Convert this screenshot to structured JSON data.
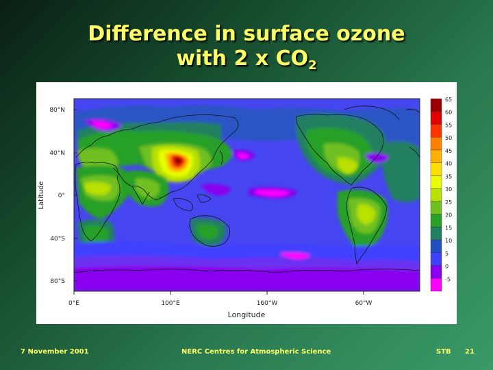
{
  "slide": {
    "title_line1": "Difference in surface ozone",
    "title_line2_main": "with 2 x CO",
    "title_line2_sub": "2",
    "footer_date": "7 November 2001",
    "footer_center": "NERC Centres for Atmospheric Science",
    "footer_initials": "STB",
    "footer_page": "21"
  },
  "chart_data": {
    "type": "heatmap",
    "xlabel": "Longitude",
    "ylabel": "Latitude",
    "x_ticks": [
      "0°E",
      "100°E",
      "160°W",
      "60°W"
    ],
    "y_ticks": [
      "80°N",
      "40°N",
      "0°",
      "40°S",
      "80°S"
    ],
    "colorbar_labels": [
      "65",
      "60",
      "55",
      "50",
      "45",
      "40",
      "35",
      "30",
      "25",
      "20",
      "15",
      "10",
      "5",
      "0",
      "-5"
    ],
    "colorbar_colors": [
      "#9b0000",
      "#e00000",
      "#ff3300",
      "#ff8000",
      "#ffb000",
      "#ffe000",
      "#e8ff00",
      "#b8e000",
      "#70c020",
      "#28a028",
      "#208060",
      "#2050c0",
      "#4040ff",
      "#8800ee",
      "#ff00ff"
    ]
  }
}
